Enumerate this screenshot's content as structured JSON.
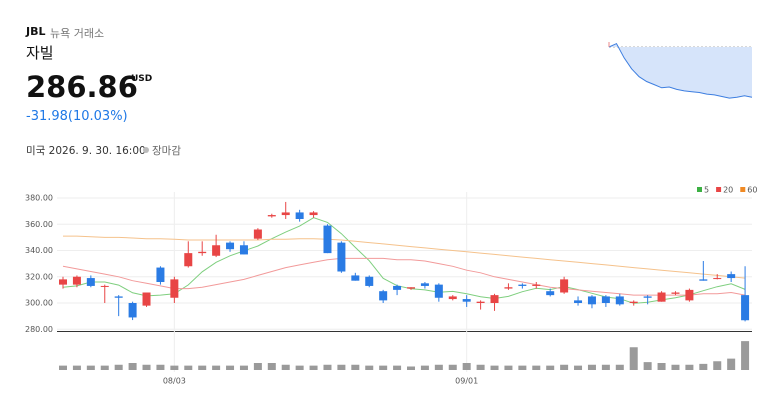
{
  "header": {
    "ticker": "JBL",
    "exchange": "뉴욕 거래소",
    "name": "자빌",
    "price": "286.86",
    "currency": "USD",
    "change": "-31.98(10.03%)",
    "timestamp": "미국 2026. 9. 30. 16:00",
    "status": "장마감"
  },
  "chart_data": [
    {
      "type": "sparkline",
      "color": "#3d7ee0",
      "fill": "#d6e4fa",
      "ylim": [
        284,
        322
      ],
      "reference": 318.84,
      "values": [
        318.84,
        321,
        312,
        305,
        300,
        297,
        295,
        293,
        293.5,
        292,
        291,
        290.5,
        290,
        289,
        288.5,
        287.5,
        286.5,
        287,
        288,
        287
      ]
    },
    {
      "type": "candlestick",
      "categories": [
        null,
        null,
        null,
        null,
        null,
        null,
        null,
        null,
        "08/03",
        null,
        null,
        null,
        null,
        null,
        null,
        null,
        null,
        null,
        null,
        null,
        null,
        null,
        null,
        null,
        null,
        null,
        null,
        null,
        null,
        "09/01",
        null,
        null,
        null,
        null,
        null,
        null,
        null,
        null,
        null,
        null,
        null,
        null,
        null,
        null,
        null,
        null,
        null,
        null,
        null,
        null
      ],
      "open": [
        314,
        314,
        319,
        313,
        305,
        300,
        298,
        327,
        304,
        328,
        338,
        336,
        346,
        344,
        349,
        366,
        367,
        369,
        367,
        359,
        346,
        321,
        320,
        309,
        313,
        311,
        315,
        314,
        303,
        303,
        300,
        300,
        311,
        314,
        313,
        309,
        308,
        302,
        305,
        305,
        305,
        300,
        305,
        301,
        307,
        302,
        318,
        319,
        322,
        306
      ],
      "high": [
        320,
        321,
        321,
        314,
        306,
        301,
        308,
        328,
        320,
        347,
        347,
        352,
        347,
        347,
        357,
        368,
        377,
        371,
        370,
        360,
        347,
        323,
        321,
        310,
        314,
        312,
        316,
        315,
        306,
        306,
        302,
        307,
        315,
        315,
        316,
        311,
        320,
        305,
        306,
        306,
        307,
        302,
        306,
        309,
        309,
        311,
        332,
        322,
        324,
        328
      ],
      "low": [
        311,
        312,
        312,
        300,
        290,
        287,
        297,
        314,
        300,
        327,
        336,
        335,
        339,
        337,
        348,
        365,
        364,
        362,
        365,
        338,
        323,
        317,
        312,
        300,
        306,
        310,
        311,
        301,
        302,
        297,
        295,
        294,
        310,
        311,
        311,
        305,
        307,
        298,
        296,
        297,
        298,
        298,
        299,
        301,
        306,
        301,
        317,
        318,
        316,
        286
      ],
      "close": [
        318,
        320,
        313,
        313,
        304,
        289,
        308,
        316,
        318,
        338,
        339,
        344,
        341,
        337,
        356,
        367,
        369,
        364,
        369,
        338,
        324,
        317,
        313,
        302,
        310,
        312,
        313,
        304,
        305,
        301,
        301,
        306,
        312,
        313,
        314,
        306,
        318,
        300,
        299,
        300,
        299,
        301,
        304,
        308,
        308,
        310,
        317,
        319,
        319,
        286.86
      ],
      "up_color": "#e84545",
      "down_color": "#2a7be4",
      "ylim": [
        278,
        384
      ],
      "yticks": [
        {
          "value": 280,
          "label": "280.00"
        },
        {
          "value": 300,
          "label": "300.00"
        },
        {
          "value": 320,
          "label": "320.00"
        },
        {
          "value": 340,
          "label": "340.00"
        },
        {
          "value": 360,
          "label": "360.00"
        },
        {
          "value": 380,
          "label": "380.00"
        }
      ],
      "series": [
        {
          "name": "5",
          "color": "#3cb043",
          "line_color": "#7fcf7f",
          "values": [
            312,
            313,
            316,
            316,
            313.6,
            307.8,
            305.4,
            306,
            307,
            313.8,
            323.8,
            331,
            336,
            339.8,
            343.4,
            349,
            354,
            358.6,
            365,
            361.4,
            352.8,
            342.4,
            332.2,
            318.8,
            313.2,
            310.8,
            310,
            308.2,
            308.8,
            307,
            304.8,
            303.4,
            305,
            308.6,
            311.2,
            310.2,
            312.6,
            310.2,
            307.4,
            304.6,
            303.2,
            299.8,
            300.6,
            302.4,
            304,
            306.2,
            309.4,
            312.4,
            314.6,
            310.4
          ]
        },
        {
          "name": "20",
          "color": "#e84545",
          "line_color": "#f29a9a",
          "values": [
            328,
            326,
            324,
            322,
            320,
            317,
            315,
            313,
            311,
            311,
            312,
            314,
            316,
            318,
            321,
            324,
            327,
            329,
            331,
            333,
            334,
            334,
            334,
            334,
            333,
            333,
            332,
            330,
            328,
            325,
            323,
            320,
            318,
            316,
            314,
            312,
            311,
            310,
            309,
            308,
            307,
            306,
            306,
            306,
            306,
            306,
            307,
            307,
            308,
            306
          ]
        },
        {
          "name": "60",
          "color": "#f08a24",
          "line_color": "#f5c28c",
          "values": [
            351,
            351,
            350.5,
            350,
            350,
            349.5,
            349,
            349,
            348.5,
            348,
            348,
            348,
            348,
            348,
            348,
            348.5,
            348.5,
            349,
            349,
            348.5,
            348,
            347,
            346,
            345,
            344,
            343,
            342,
            341,
            340,
            339,
            338,
            337,
            336,
            335,
            334,
            333,
            332,
            331,
            330,
            329,
            328,
            327,
            326,
            325,
            324,
            323,
            322,
            321,
            320,
            319
          ]
        }
      ],
      "volume": {
        "color": "#9a9a9a",
        "ylim": [
          0,
          40
        ],
        "values": [
          5,
          5,
          5,
          5,
          6,
          8,
          6,
          6,
          5,
          5,
          5,
          5,
          5,
          5,
          8,
          8,
          6,
          5,
          5,
          6,
          6,
          6,
          5,
          5,
          5,
          4,
          5,
          6,
          6,
          8,
          6,
          5,
          5,
          5,
          5,
          5,
          6,
          5,
          6,
          6,
          6,
          26,
          9,
          8,
          6,
          6,
          7,
          10,
          13,
          33
        ]
      }
    }
  ]
}
